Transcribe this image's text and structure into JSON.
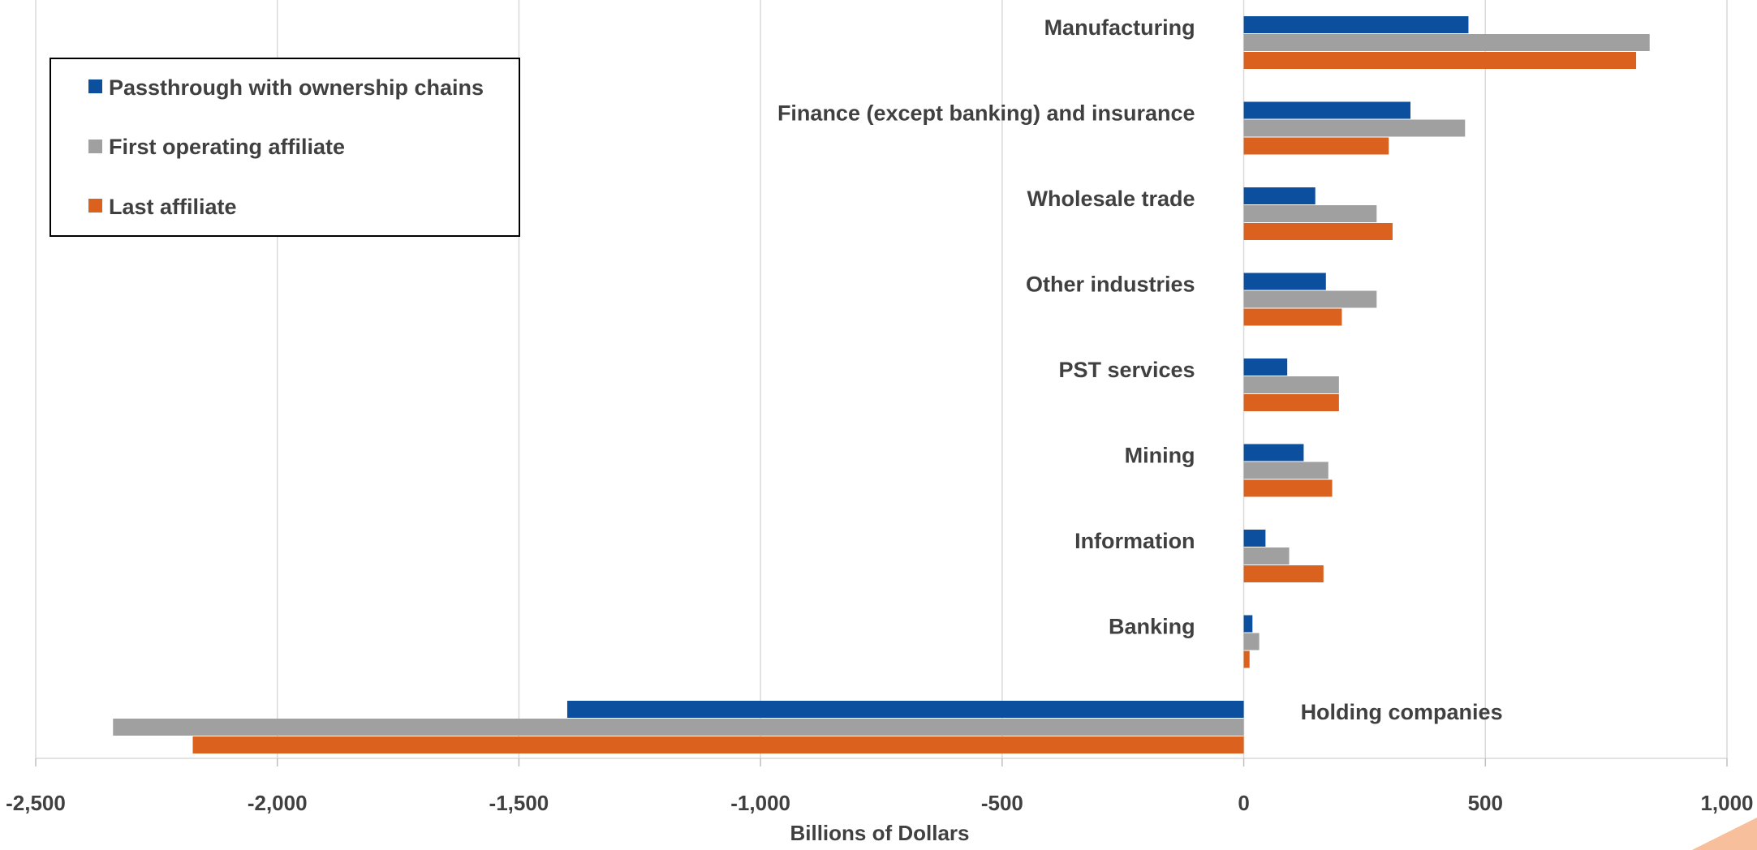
{
  "chart_data": {
    "type": "bar",
    "orientation": "horizontal",
    "categories": [
      "Manufacturing",
      "Finance (except banking) and insurance",
      "Wholesale trade",
      "Other industries",
      "PST services",
      "Mining",
      "Information",
      "Banking",
      "Holding companies"
    ],
    "series": [
      {
        "name": "Passthrough with ownership chains",
        "color": "#0B4F9E",
        "values": [
          465,
          345,
          148,
          170,
          90,
          124,
          45,
          18,
          -1400
        ]
      },
      {
        "name": "First operating affiliate",
        "color": "#A0A0A0",
        "values": [
          840,
          458,
          275,
          275,
          197,
          175,
          94,
          32,
          -2340
        ]
      },
      {
        "name": "Last affiliate",
        "color": "#DB621E",
        "values": [
          812,
          300,
          308,
          203,
          197,
          183,
          165,
          12,
          -2175
        ]
      }
    ],
    "xlabel": "Billions of Dollars",
    "xlim": [
      -2500,
      1000
    ],
    "xticks": [
      -2500,
      -2000,
      -1500,
      -1000,
      -500,
      0,
      500,
      1000
    ],
    "xtick_labels": [
      "-2,500",
      "-2,000",
      "-1,500",
      "-1,000",
      "-500",
      "0",
      "500",
      "1,000"
    ],
    "grid": "vertical",
    "legend_position": "top-left"
  }
}
